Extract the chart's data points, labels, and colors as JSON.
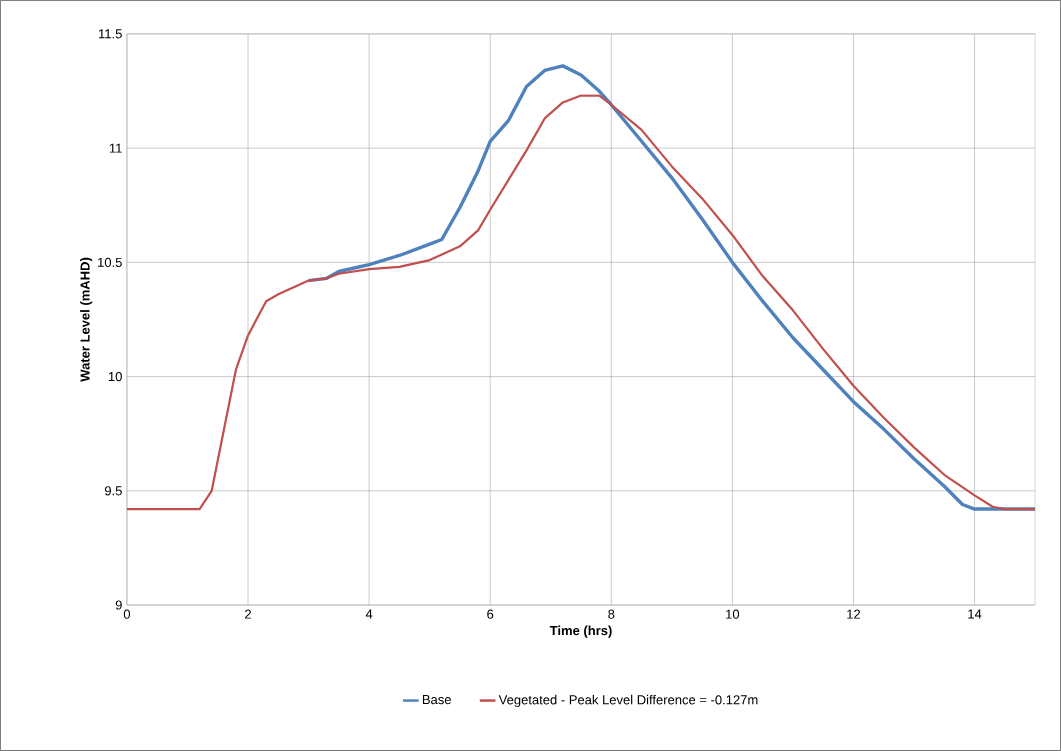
{
  "chart_data": {
    "type": "line",
    "xlabel": "Time (hrs)",
    "ylabel": "Water Level (mAHD)",
    "xlim": [
      0,
      15
    ],
    "ylim": [
      9,
      11.5
    ],
    "xticks": [
      0,
      2,
      4,
      6,
      8,
      10,
      12,
      14
    ],
    "yticks": [
      9,
      9.5,
      10,
      10.5,
      11,
      11.5
    ],
    "grid": true,
    "legend": "bottom",
    "line_style": "solid",
    "marker": "none",
    "series": [
      {
        "name": "Base",
        "color": "#4f81bd",
        "x": [
          3.0,
          3.3,
          3.5,
          4.0,
          4.5,
          5.0,
          5.2,
          5.5,
          5.8,
          6.0,
          6.3,
          6.6,
          6.9,
          7.2,
          7.5,
          7.8,
          8.0,
          8.5,
          9.0,
          9.5,
          10.0,
          10.5,
          11.0,
          11.5,
          12.0,
          12.5,
          13.0,
          13.5,
          13.8,
          14.0,
          15
        ],
        "values": [
          10.42,
          10.43,
          10.46,
          10.49,
          10.53,
          10.58,
          10.6,
          10.74,
          10.9,
          11.03,
          11.12,
          11.27,
          11.34,
          11.36,
          11.32,
          11.25,
          11.19,
          11.03,
          10.87,
          10.69,
          10.5,
          10.33,
          10.17,
          10.03,
          9.89,
          9.77,
          9.64,
          9.52,
          9.44,
          9.42,
          9.42
        ]
      },
      {
        "name": "Vegetated - Peak Level Difference = -0.127m",
        "color": "#c0504d",
        "x": [
          0,
          1.2,
          1.4,
          1.8,
          2.0,
          2.3,
          2.5,
          3.0,
          3.3,
          3.5,
          4.0,
          4.5,
          5.0,
          5.5,
          5.8,
          6.0,
          6.3,
          6.6,
          6.9,
          7.2,
          7.5,
          7.8,
          8.0,
          8.5,
          9.0,
          9.5,
          10.0,
          10.5,
          11.0,
          11.5,
          12.0,
          12.5,
          13.0,
          13.5,
          14.0,
          14.3,
          14.5,
          15
        ],
        "values": [
          9.42,
          9.42,
          9.5,
          10.03,
          10.18,
          10.33,
          10.36,
          10.42,
          10.43,
          10.45,
          10.47,
          10.48,
          10.51,
          10.57,
          10.64,
          10.73,
          10.86,
          10.99,
          11.13,
          11.2,
          11.23,
          11.23,
          11.19,
          11.08,
          10.92,
          10.78,
          10.62,
          10.44,
          10.29,
          10.12,
          9.96,
          9.82,
          9.69,
          9.57,
          9.48,
          9.43,
          9.42,
          9.42
        ]
      }
    ]
  }
}
